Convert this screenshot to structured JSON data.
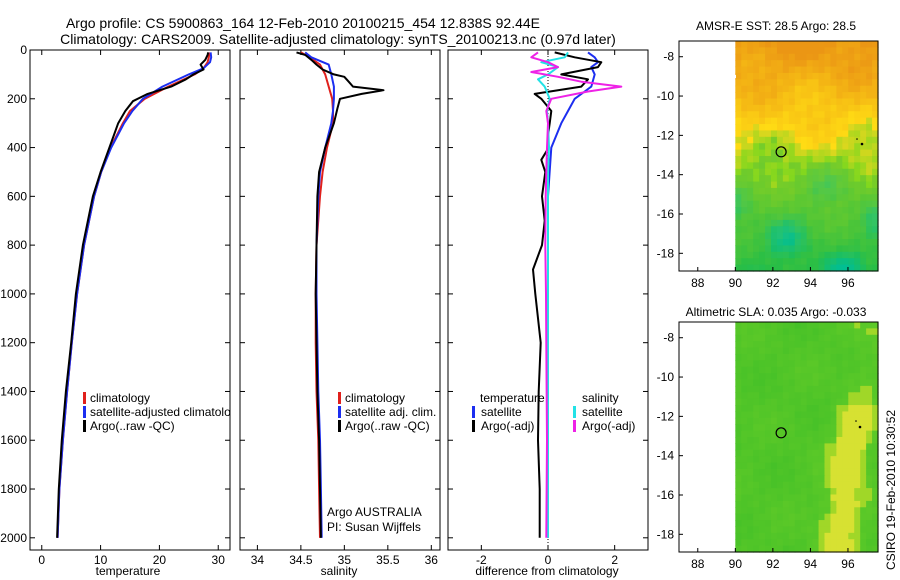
{
  "title": {
    "line1": "Argo profile: CS 5900863_164 12-Feb-2010 20100215_454 12.838S 92.44E",
    "line2": "Climatology: CARS2009. Satellite-adjusted climatology: synTS_20100213.nc (0.97d later)"
  },
  "footer_stamp": "CSIRO 19-Feb-2010 10:30:52",
  "colors": {
    "red": "#e0201c",
    "blue": "#1c2ef0",
    "black": "#000000",
    "cyan": "#22e2e6",
    "magenta": "#ee22e6"
  },
  "chart_data": [
    {
      "id": "temperature",
      "type": "line",
      "xlabel": "temperature",
      "ylabel": "",
      "xlim": [
        -2,
        32
      ],
      "ylim": [
        2050,
        0
      ],
      "xticks": [
        0,
        10,
        20,
        30
      ],
      "yticks": [
        0,
        200,
        400,
        600,
        800,
        1000,
        1200,
        1400,
        1600,
        1800,
        2000
      ],
      "legend": [
        "climatology",
        "satellite-adjusted climatology",
        "Argo(..raw -QC)"
      ],
      "series": [
        {
          "name": "climatology",
          "color": "red",
          "depths": [
            2000,
            1800,
            1600,
            1400,
            1200,
            1000,
            800,
            600,
            500,
            400,
            300,
            250,
            200,
            150,
            100,
            75,
            50,
            30,
            10
          ],
          "values": [
            2.7,
            3.0,
            3.6,
            4.3,
            5.1,
            6.0,
            7.2,
            8.9,
            10.1,
            11.7,
            13.8,
            15.0,
            17.5,
            21.5,
            26.0,
            27.5,
            28.2,
            28.4,
            28.5
          ]
        },
        {
          "name": "satellite-adjusted climatology",
          "color": "blue",
          "depths": [
            2000,
            1800,
            1600,
            1400,
            1200,
            1000,
            800,
            600,
            500,
            400,
            300,
            250,
            200,
            150,
            100,
            75,
            50,
            30,
            10
          ],
          "values": [
            2.7,
            3.0,
            3.6,
            4.3,
            5.1,
            6.0,
            7.2,
            8.9,
            10.1,
            11.8,
            14.0,
            15.4,
            17.2,
            20.5,
            25.0,
            27.5,
            28.6,
            28.8,
            28.7
          ]
        },
        {
          "name": "Argo(..raw -QC)",
          "color": "black",
          "depths": [
            2000,
            1800,
            1600,
            1400,
            1200,
            1000,
            800,
            600,
            500,
            400,
            300,
            250,
            210,
            180,
            150,
            120,
            100,
            80,
            60,
            40,
            20,
            10
          ],
          "values": [
            2.6,
            2.9,
            3.4,
            4.1,
            5.0,
            5.8,
            7.0,
            8.7,
            10.0,
            11.5,
            13.0,
            14.2,
            15.5,
            18.0,
            22.0,
            24.5,
            25.8,
            27.5,
            27.0,
            27.8,
            28.2,
            28.3
          ]
        }
      ]
    },
    {
      "id": "salinity",
      "type": "line",
      "xlabel": "salinity",
      "xlim": [
        33.8,
        36.1
      ],
      "ylim": [
        2050,
        0
      ],
      "xticks": [
        34,
        34.5,
        35,
        35.5,
        36
      ],
      "legend": [
        "climatology",
        "satellite adj. clim.",
        "Argo(..raw -QC)"
      ],
      "annotations": [
        "Argo AUSTRALIA",
        "PI: Susan Wijffels"
      ],
      "series": [
        {
          "name": "climatology",
          "color": "red",
          "depths": [
            2000,
            1800,
            1600,
            1400,
            1200,
            1000,
            800,
            600,
            500,
            400,
            300,
            250,
            200,
            150,
            100,
            60,
            30,
            10
          ],
          "values": [
            34.72,
            34.71,
            34.7,
            34.68,
            34.67,
            34.67,
            34.68,
            34.72,
            34.75,
            34.8,
            34.87,
            34.87,
            34.86,
            34.82,
            34.78,
            34.72,
            34.6,
            34.5
          ]
        },
        {
          "name": "satellite adj. clim.",
          "color": "blue",
          "depths": [
            2000,
            1800,
            1600,
            1400,
            1200,
            1000,
            800,
            600,
            500,
            400,
            300,
            250,
            200,
            150,
            100,
            60,
            30,
            10
          ],
          "values": [
            34.74,
            34.73,
            34.72,
            34.7,
            34.69,
            34.68,
            34.68,
            34.7,
            34.72,
            34.78,
            34.85,
            34.87,
            34.88,
            34.88,
            34.85,
            34.82,
            34.62,
            34.55
          ]
        },
        {
          "name": "Argo(..raw -QC)",
          "color": "black",
          "depths": [
            2000,
            1800,
            1600,
            1400,
            1200,
            1000,
            800,
            600,
            500,
            400,
            330,
            300,
            240,
            200,
            180,
            165,
            150,
            130,
            110,
            100,
            80,
            60,
            40,
            20,
            10
          ],
          "values": [
            34.73,
            34.72,
            34.71,
            34.69,
            34.68,
            34.67,
            34.68,
            34.69,
            34.71,
            34.78,
            34.85,
            34.88,
            34.92,
            34.95,
            35.2,
            35.45,
            35.1,
            35.05,
            35.0,
            34.88,
            34.75,
            34.68,
            34.62,
            34.55,
            34.45
          ]
        }
      ]
    },
    {
      "id": "difference",
      "type": "line",
      "xlabel": "difference from climatology",
      "xlim": [
        -3,
        3
      ],
      "ylim": [
        2050,
        0
      ],
      "xticks": [
        -2,
        0,
        2
      ],
      "legend_headers": [
        "temperature",
        "salinity"
      ],
      "legend": [
        "satellite",
        "Argo(-adj)",
        "satellite",
        "Argo(-adj)"
      ],
      "series": [
        {
          "name": "temperature satellite",
          "color": "blue",
          "depths": [
            2000,
            1600,
            1200,
            800,
            600,
            400,
            300,
            250,
            200,
            170,
            150,
            100,
            70,
            50,
            30,
            10
          ],
          "values": [
            0.0,
            0.0,
            0.0,
            0.0,
            0.0,
            0.1,
            0.4,
            0.6,
            0.8,
            1.1,
            1.3,
            1.4,
            1.3,
            1.5,
            1.4,
            1.2
          ]
        },
        {
          "name": "temperature Argo(-adj)",
          "color": "black",
          "depths": [
            2000,
            1800,
            1600,
            1400,
            1200,
            1000,
            900,
            800,
            700,
            600,
            500,
            450,
            400,
            350,
            300,
            250,
            200,
            180,
            150,
            120,
            100,
            70,
            50,
            30,
            10
          ],
          "values": [
            -0.25,
            -0.25,
            -0.3,
            -0.28,
            -0.22,
            -0.38,
            -0.45,
            -0.18,
            -0.1,
            -0.18,
            -0.08,
            -0.2,
            0.02,
            0.0,
            0.05,
            0.1,
            -0.2,
            -0.4,
            1.0,
            1.2,
            0.4,
            1.5,
            1.6,
            0.8,
            0.2
          ]
        },
        {
          "name": "salinity satellite",
          "color": "cyan",
          "depths": [
            2000,
            1800,
            1600,
            1400,
            1200,
            1000,
            800,
            600,
            500,
            400,
            300,
            250,
            200,
            150,
            120,
            100,
            70,
            50,
            30,
            10
          ],
          "values": [
            0.0,
            0.0,
            0.0,
            0.0,
            0.0,
            0.0,
            0.0,
            0.0,
            0.0,
            0.03,
            0.0,
            -0.03,
            0.05,
            -0.1,
            -0.3,
            0.0,
            0.3,
            -0.2,
            0.5,
            0.6
          ]
        },
        {
          "name": "salinity Argo(-adj)",
          "color": "magenta",
          "depths": [
            2000,
            1600,
            1200,
            1000,
            800,
            600,
            500,
            400,
            300,
            250,
            200,
            170,
            150,
            130,
            110,
            90,
            70,
            50,
            30,
            10
          ],
          "values": [
            -0.05,
            -0.03,
            -0.05,
            -0.06,
            -0.08,
            -0.07,
            -0.05,
            -0.03,
            0.0,
            -0.05,
            0.1,
            1.2,
            2.2,
            1.0,
            0.3,
            -0.5,
            0.3,
            0.0,
            -0.5,
            -0.3
          ]
        }
      ]
    },
    {
      "id": "sst_map",
      "type": "heatmap",
      "title": "AMSR-E SST: 28.5 Argo: 28.5",
      "xlim": [
        87,
        97.6
      ],
      "ylim": [
        -18.9,
        -7.2
      ],
      "xticks": [
        88,
        90,
        92,
        94,
        96
      ],
      "yticks": [
        -8,
        -10,
        -12,
        -14,
        -16,
        -18
      ],
      "data_lon_range": [
        90,
        97.6
      ],
      "float_position": {
        "lon": 92.44,
        "lat": -12.838
      }
    },
    {
      "id": "sla_map",
      "type": "heatmap",
      "title": "Altimetric SLA: 0.035 Argo: -0.033",
      "xlim": [
        87,
        97.6
      ],
      "ylim": [
        -18.9,
        -7.2
      ],
      "xticks": [
        88,
        90,
        92,
        94,
        96
      ],
      "yticks": [
        -8,
        -10,
        -12,
        -14,
        -16,
        -18
      ],
      "data_lon_range": [
        90,
        97.6
      ],
      "float_position": {
        "lon": 92.44,
        "lat": -12.838
      }
    }
  ]
}
